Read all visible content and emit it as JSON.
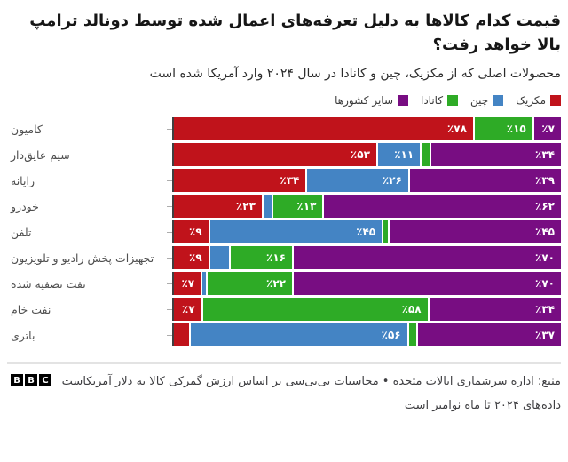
{
  "header": {
    "title": "قیمت کدام کالاها به دلیل تعرفه‌های اعمال شده توسط دونالد ترامپ بالا خواهد رفت؟",
    "subtitle": "محصولات اصلی که از مکزیک، چین و کانادا در سال ۲۰۲۴ وارد آمریکا شده است"
  },
  "colors": {
    "mexico": "#c0131b",
    "china": "#4484c4",
    "canada": "#2eab26",
    "other": "#780d82",
    "axis": "#404040",
    "background": "#ffffff"
  },
  "legend": [
    {
      "label": "مکزیک",
      "color": "#c0131b"
    },
    {
      "label": "چین",
      "color": "#4484c4"
    },
    {
      "label": "کانادا",
      "color": "#2eab26"
    },
    {
      "label": "سایر کشورها",
      "color": "#780d82"
    }
  ],
  "chart_data": {
    "type": "bar",
    "orientation": "horizontal",
    "stacked": true,
    "unit": "percent",
    "xlim": [
      0,
      100
    ],
    "legend_position": "top-right",
    "categories": [
      "کامیون",
      "سیم عایق‌دار",
      "رایانه",
      "خودرو",
      "تلفن",
      "تجهیزات پخش رادیو و تلویزیون",
      "نفت تصفیه شده",
      "نفت خام",
      "باتری"
    ],
    "series": [
      {
        "name": "مکزیک",
        "color": "#c0131b",
        "values": [
          78,
          53,
          34,
          23,
          9,
          9,
          7,
          7,
          4
        ],
        "display": [
          "٪۷۸",
          "٪۵۳",
          "٪۳۴",
          "٪۲۳",
          "٪۹",
          "٪۹",
          "٪۷",
          "٪۷",
          ""
        ]
      },
      {
        "name": "چین",
        "color": "#4484c4",
        "values": [
          0,
          11,
          26,
          2,
          45,
          5,
          1,
          0,
          56
        ],
        "display": [
          "",
          "٪۱۱",
          "٪۲۶",
          "",
          "٪۴۵",
          "",
          "",
          "",
          "٪۵۶"
        ]
      },
      {
        "name": "کانادا",
        "color": "#2eab26",
        "values": [
          15,
          2,
          0,
          13,
          1,
          16,
          22,
          58,
          2
        ],
        "display": [
          "٪۱۵",
          "",
          "",
          "٪۱۳",
          "",
          "٪۱۶",
          "٪۲۲",
          "٪۵۸",
          ""
        ]
      },
      {
        "name": "سایر کشورها",
        "color": "#780d82",
        "values": [
          7,
          34,
          39,
          62,
          45,
          70,
          70,
          34,
          37
        ],
        "display": [
          "٪۷",
          "٪۳۴",
          "٪۳۹",
          "٪۶۲",
          "٪۴۵",
          "٪۷۰",
          "٪۷۰",
          "٪۳۴",
          "٪۳۷"
        ]
      }
    ]
  },
  "footer": {
    "source": "منبع: اداره سرشماری ایالات متحده • محاسبات بی‌بی‌سی بر اساس ارزش گمرکی کالا به دلار آمریکاست",
    "note": "داده‌های ۲۰۲۴ تا ماه نوامبر است",
    "logo_letters": [
      "B",
      "B",
      "C"
    ]
  }
}
